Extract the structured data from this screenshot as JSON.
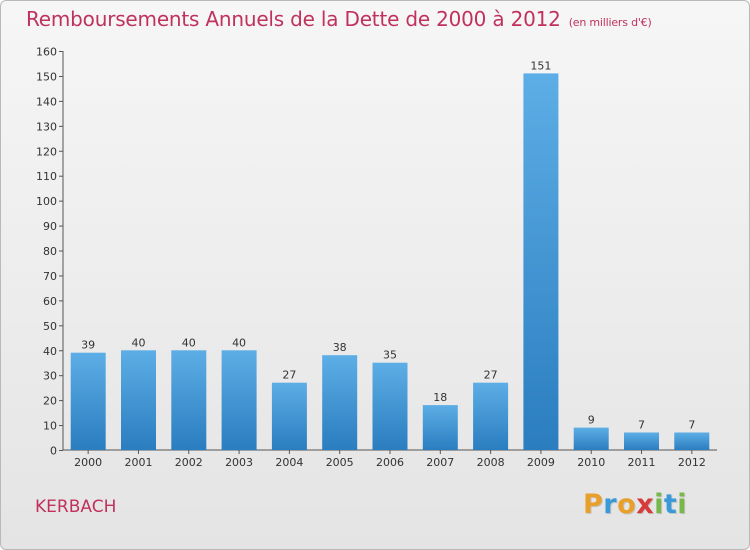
{
  "chart_data": {
    "type": "bar",
    "title": "Remboursements Annuels de la Dette de 2000 à 2012",
    "unit": "(en milliers d'€)",
    "categories": [
      "2000",
      "2001",
      "2002",
      "2003",
      "2004",
      "2005",
      "2006",
      "2007",
      "2008",
      "2009",
      "2010",
      "2011",
      "2012"
    ],
    "values": [
      39,
      40,
      40,
      40,
      27,
      38,
      35,
      18,
      27,
      151,
      9,
      7,
      7
    ],
    "ylim": [
      0,
      160
    ],
    "yticks": [
      0,
      10,
      20,
      30,
      40,
      50,
      60,
      70,
      80,
      90,
      100,
      110,
      120,
      130,
      140,
      150,
      160
    ],
    "grid": false,
    "legend": "none"
  },
  "commune": "KERBACH",
  "logo": {
    "letters": [
      "P",
      "r",
      "o",
      "x",
      "i",
      "t",
      "i"
    ],
    "colors": [
      "#e8a02a",
      "#3a9ad9",
      "#e8a02a",
      "#d63a3a",
      "#78b84a",
      "#3a9ad9",
      "#78b84a"
    ]
  },
  "colors": {
    "title": "#c0325d",
    "bar_top": "#5daee6",
    "bar_bottom": "#2a7dbf",
    "axis": "#555555"
  }
}
